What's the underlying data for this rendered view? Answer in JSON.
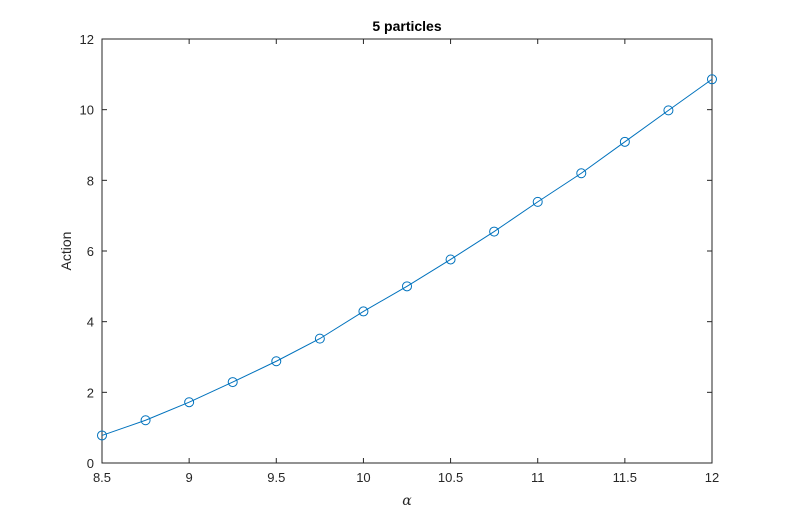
{
  "chart_data": {
    "type": "line",
    "title": "5 particles",
    "xlabel": "α",
    "ylabel": "Action",
    "xlim": [
      8.5,
      12
    ],
    "ylim": [
      0,
      12
    ],
    "xticks": [
      "8.5",
      "9",
      "9.5",
      "10",
      "10.5",
      "11",
      "11.5",
      "12"
    ],
    "yticks": [
      "0",
      "2",
      "4",
      "6",
      "8",
      "10",
      "12"
    ],
    "grid": false,
    "marker": "circle",
    "series": [
      {
        "color": "#0072bd",
        "x": [
          8.5,
          8.75,
          9.0,
          9.25,
          9.5,
          9.75,
          10.0,
          10.25,
          10.5,
          10.75,
          11.0,
          11.25,
          11.5,
          11.75,
          12.0
        ],
        "y": [
          0.78,
          1.21,
          1.72,
          2.29,
          2.88,
          3.52,
          4.29,
          5.0,
          5.76,
          6.55,
          7.39,
          8.2,
          9.09,
          9.98,
          10.86
        ]
      }
    ]
  }
}
